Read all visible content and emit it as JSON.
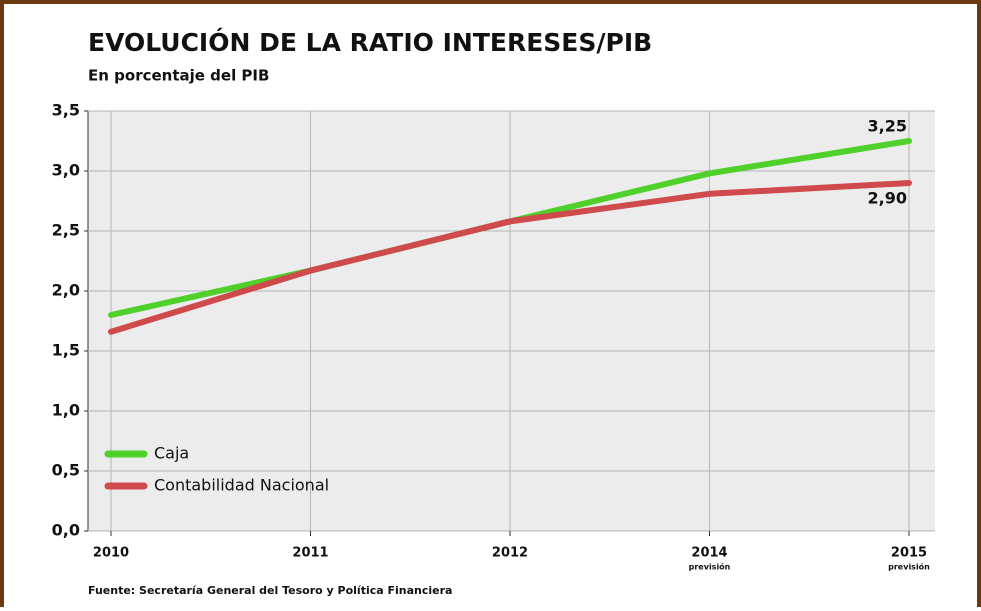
{
  "chart_data": {
    "type": "line",
    "title": "EVOLUCIÓN DE LA RATIO INTERESES/PIB",
    "subtitle": "En porcentaje del PIB",
    "source": "Fuente: Secretaría General del Tesoro y Política Financiera",
    "categories": [
      "2010",
      "2011",
      "2012",
      "2014",
      "2015"
    ],
    "category_notes": [
      null,
      null,
      null,
      "previsión",
      "previsión"
    ],
    "series": [
      {
        "name": "Caja",
        "color": "#4fd02a",
        "values": [
          1.8,
          2.17,
          2.58,
          2.98,
          3.25
        ],
        "value_labels": [
          null,
          null,
          null,
          null,
          "3,25"
        ]
      },
      {
        "name": "Contabilidad Nacional",
        "color": "#cf4a4c",
        "values": [
          1.66,
          2.17,
          2.58,
          2.81,
          2.9
        ],
        "value_labels": [
          null,
          null,
          null,
          null,
          "2,90"
        ]
      }
    ],
    "ylim": [
      0,
      3.5
    ],
    "yticks": [
      {
        "value": 0,
        "label": "0,0"
      },
      {
        "value": 0.5,
        "label": "0,5"
      },
      {
        "value": 1,
        "label": "1,0"
      },
      {
        "value": 1.5,
        "label": "1,5"
      },
      {
        "value": 2,
        "label": "2,0"
      },
      {
        "value": 2.5,
        "label": "2,5"
      },
      {
        "value": 3,
        "label": "3,0"
      },
      {
        "value": 3.5,
        "label": "3,5"
      }
    ],
    "grid": true
  }
}
